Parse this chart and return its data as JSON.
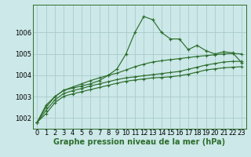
{
  "background_color": "#cce8e8",
  "grid_color": "#aacccc",
  "line_color": "#2d6e2d",
  "xlabel": "Graphe pression niveau de la mer (hPa)",
  "xlabel_fontsize": 7,
  "tick_fontsize": 6,
  "ylim": [
    1001.5,
    1007.3
  ],
  "xlim": [
    -0.5,
    23.5
  ],
  "yticks": [
    1002,
    1003,
    1004,
    1005,
    1006
  ],
  "xticks": [
    0,
    1,
    2,
    3,
    4,
    5,
    6,
    7,
    8,
    9,
    10,
    11,
    12,
    13,
    14,
    15,
    16,
    17,
    18,
    19,
    20,
    21,
    22,
    23
  ],
  "series1": [
    1001.8,
    1002.6,
    1003.0,
    1003.3,
    1003.4,
    1003.5,
    1003.6,
    1003.75,
    1004.0,
    1004.3,
    1005.0,
    1006.0,
    1006.75,
    1006.6,
    1006.0,
    1005.7,
    1005.7,
    1005.2,
    1005.4,
    1005.15,
    1005.0,
    1005.1,
    1005.05,
    1004.6
  ],
  "series2": [
    1001.8,
    1002.5,
    1003.0,
    1003.3,
    1003.45,
    1003.6,
    1003.75,
    1003.88,
    1004.0,
    1004.1,
    1004.25,
    1004.4,
    1004.52,
    1004.62,
    1004.68,
    1004.73,
    1004.78,
    1004.83,
    1004.88,
    1004.92,
    1004.96,
    1005.0,
    1005.02,
    1005.0
  ],
  "series3": [
    1001.8,
    1002.35,
    1002.85,
    1003.15,
    1003.28,
    1003.38,
    1003.5,
    1003.6,
    1003.7,
    1003.8,
    1003.88,
    1003.93,
    1003.98,
    1004.03,
    1004.08,
    1004.13,
    1004.18,
    1004.28,
    1004.38,
    1004.48,
    1004.55,
    1004.62,
    1004.65,
    1004.65
  ],
  "series4": [
    1001.8,
    1002.2,
    1002.72,
    1003.02,
    1003.13,
    1003.23,
    1003.33,
    1003.43,
    1003.53,
    1003.63,
    1003.72,
    1003.78,
    1003.83,
    1003.88,
    1003.9,
    1003.93,
    1003.98,
    1004.05,
    1004.15,
    1004.25,
    1004.3,
    1004.35,
    1004.38,
    1004.4
  ]
}
